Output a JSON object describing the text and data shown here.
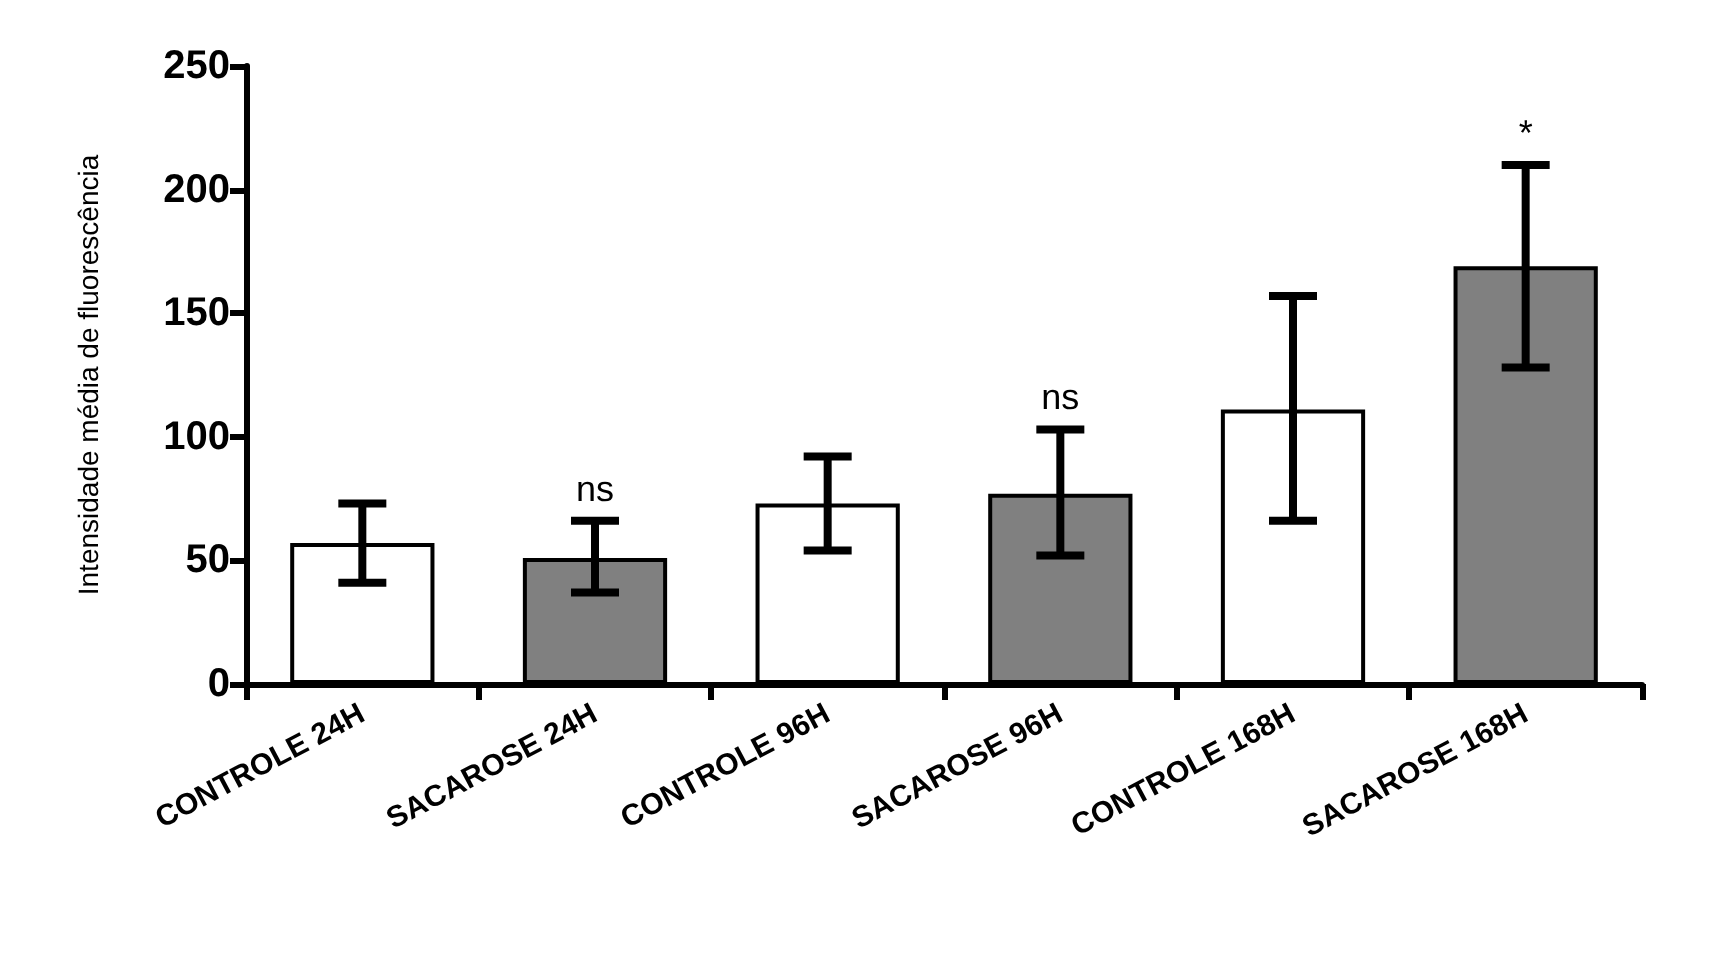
{
  "chart_data": {
    "type": "bar",
    "ylabel": "Intensidade média de fluorescência",
    "categories": [
      "CONTROLE 24H",
      "SACAROSE 24H",
      "CONTROLE 96H",
      "SACAROSE 96H",
      "CONTROLE 168H",
      "SACAROSE 168H"
    ],
    "values": [
      57,
      51,
      73,
      77,
      111,
      169
    ],
    "colors": [
      "#ffffff",
      "#808080",
      "#ffffff",
      "#808080",
      "#ffffff",
      "#808080"
    ],
    "errors": [
      [
        41,
        73
      ],
      [
        37,
        66
      ],
      [
        54,
        92
      ],
      [
        52,
        103
      ],
      [
        66,
        157
      ],
      [
        128,
        210
      ]
    ],
    "ylim": [
      0,
      250
    ],
    "yticks": [
      0,
      50,
      100,
      150,
      200,
      250
    ],
    "grid": false,
    "annotations": [
      {
        "text": "ns",
        "x": "SACAROSE 24H",
        "y": 66
      },
      {
        "text": "ns",
        "x": "SACAROSE 96H",
        "y": 103
      },
      {
        "text": "*",
        "x": "SACAROSE 168H",
        "y": 210
      }
    ]
  }
}
